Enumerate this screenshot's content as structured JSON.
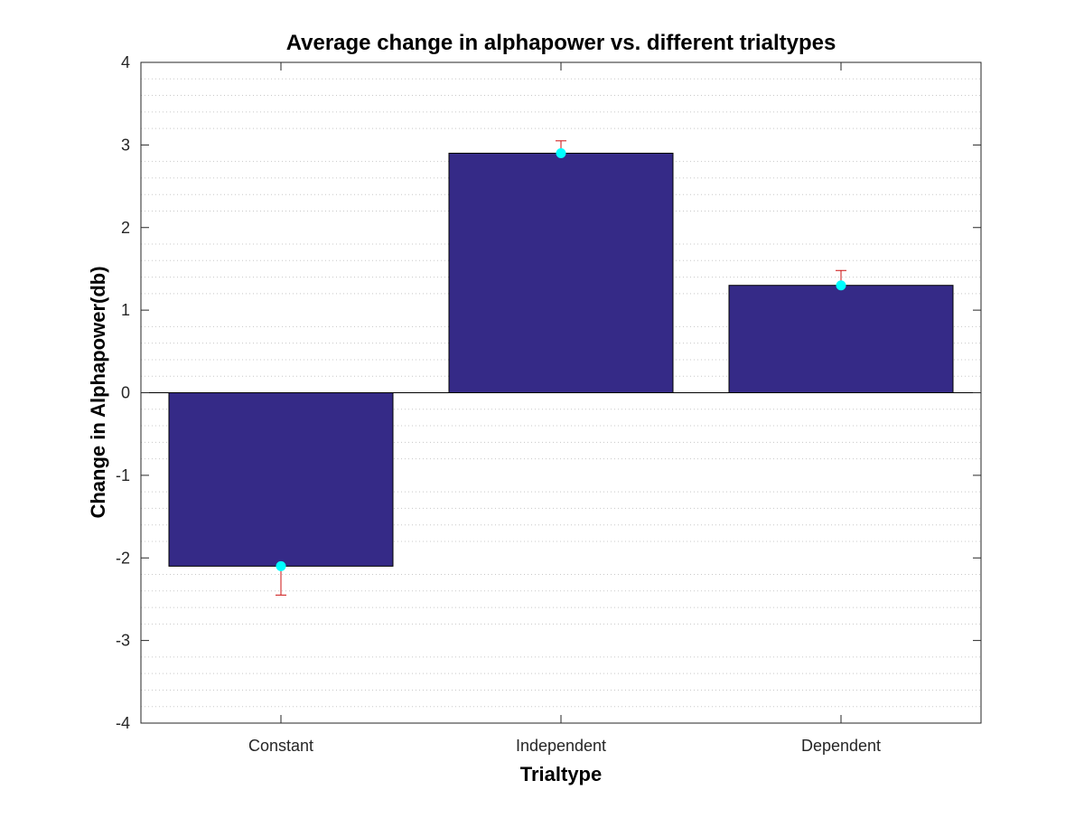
{
  "chart_data": {
    "type": "bar",
    "title": "Average change in alphapower vs. different trialtypes",
    "xlabel": "Trialtype",
    "ylabel": "Change in Alphapower(db)",
    "categories": [
      "Constant",
      "Independent",
      "Dependent"
    ],
    "values": [
      -2.1,
      2.9,
      1.3
    ],
    "error_upper": [
      0.0,
      0.15,
      0.18
    ],
    "error_lower": [
      0.35,
      0.0,
      0.0
    ],
    "ylim": [
      -4,
      4
    ],
    "yticks": [
      -4,
      -3,
      -2,
      -1,
      0,
      1,
      2,
      3,
      4
    ],
    "ytick_labels": [
      "-4",
      "-3",
      "-2",
      "-1",
      "0",
      "1",
      "2",
      "3",
      "4"
    ],
    "grid": "minor-dotted-y",
    "colors": {
      "bar": "#352A87",
      "marker": "#00FFFF",
      "errorbar": "#CC1111",
      "axis": "#262626",
      "grid": "#C8C8C8"
    }
  }
}
